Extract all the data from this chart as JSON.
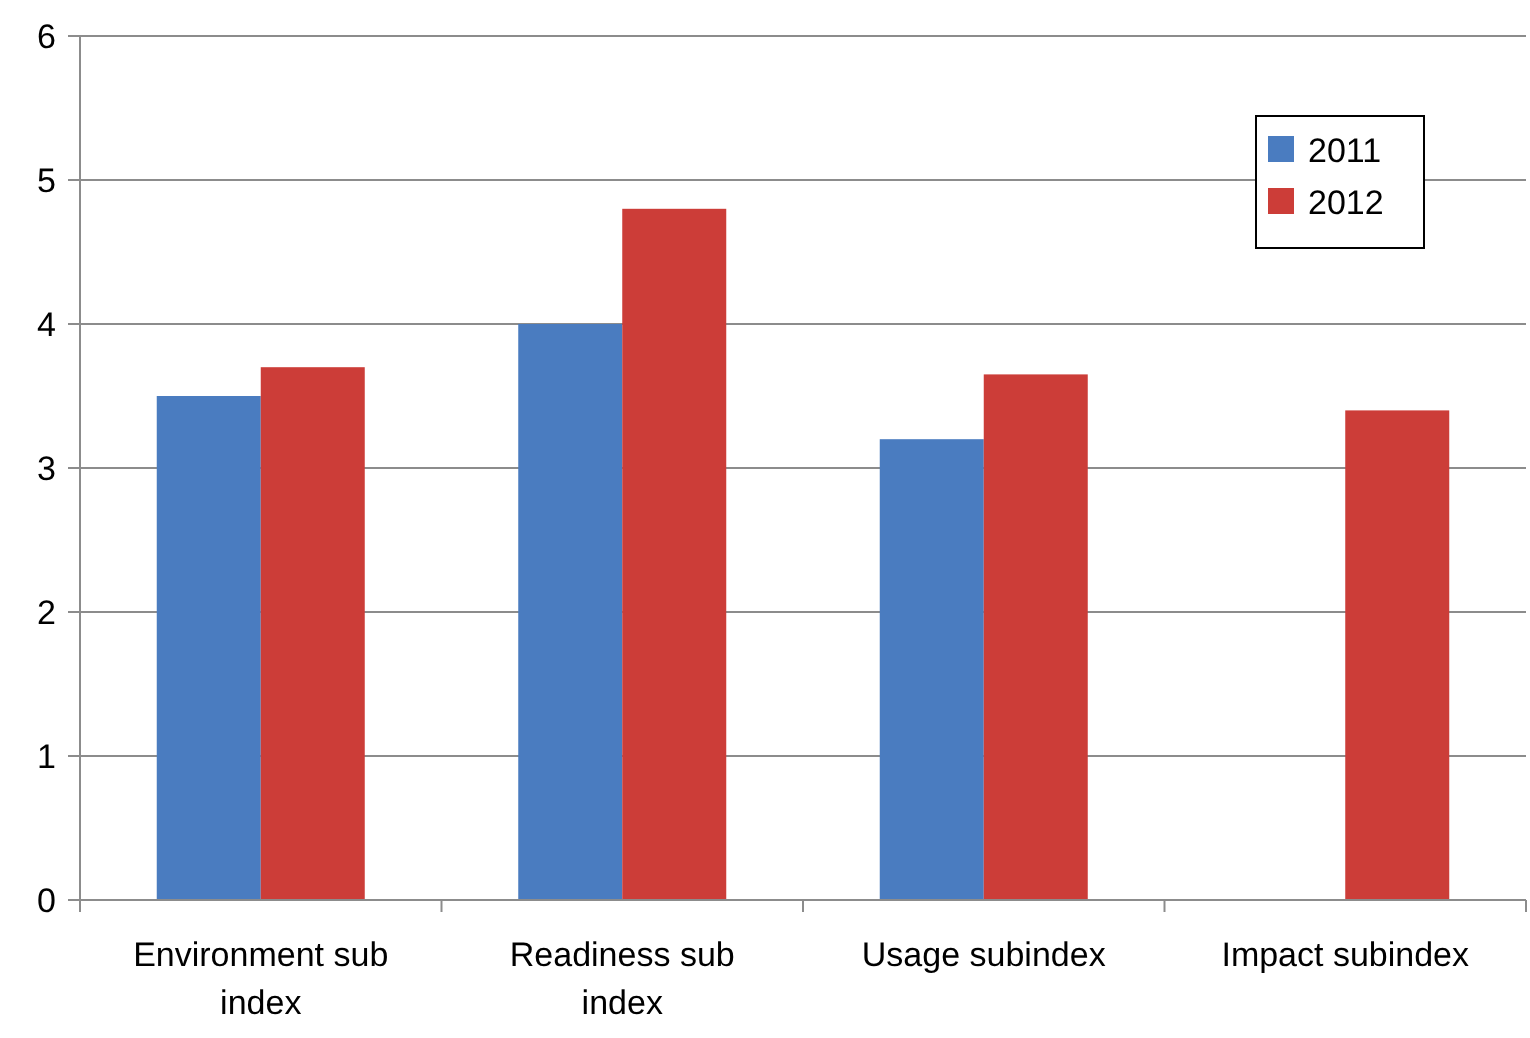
{
  "chart_data": {
    "type": "bar",
    "categories": [
      "Environment sub index",
      "Readiness sub index",
      "Usage subindex",
      "Impact subindex"
    ],
    "series": [
      {
        "name": "2011",
        "color": "#4a7cc0",
        "values": [
          3.5,
          4.0,
          3.2,
          null
        ]
      },
      {
        "name": "2012",
        "color": "#cc3d38",
        "values": [
          3.7,
          4.8,
          3.65,
          3.4
        ]
      }
    ],
    "ylim": [
      0,
      6
    ],
    "yticks": [
      0,
      1,
      2,
      3,
      4,
      5,
      6
    ],
    "grid": "y",
    "legend": "top right"
  }
}
